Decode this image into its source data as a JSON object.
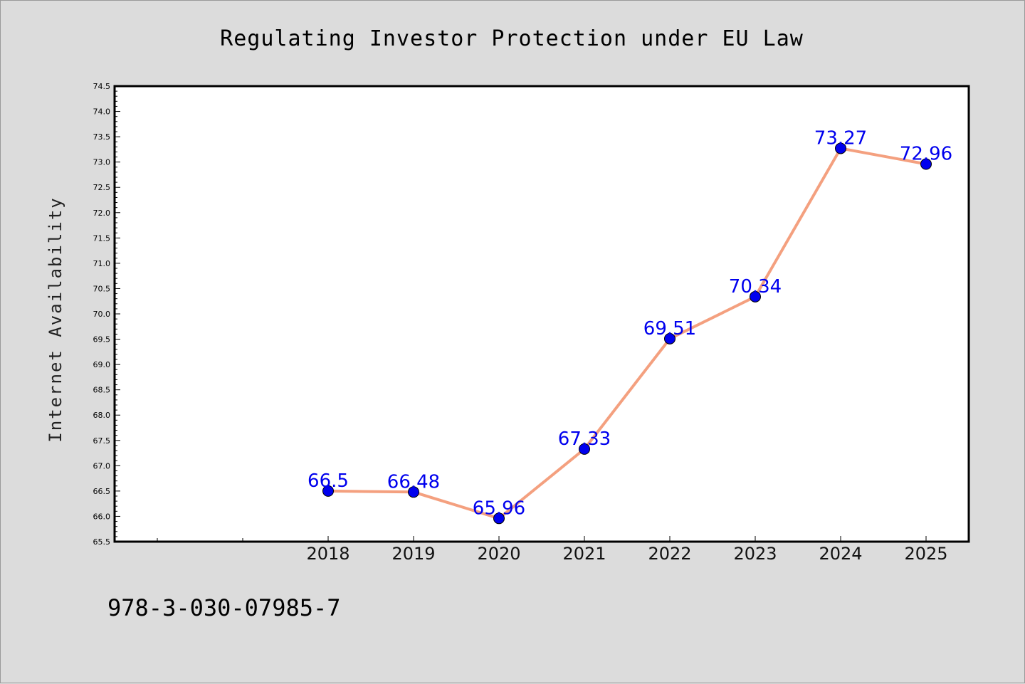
{
  "chart_data": {
    "type": "line",
    "title": "Regulating Investor Protection under EU Law",
    "xlabel": "",
    "ylabel": "Internet Availability",
    "categories": [
      "2018",
      "2019",
      "2020",
      "2021",
      "2022",
      "2023",
      "2024",
      "2025"
    ],
    "series": [
      {
        "values": [
          66.5,
          66.48,
          65.96,
          67.33,
          69.51,
          70.34,
          73.27,
          72.96
        ],
        "labels": [
          "66.5",
          "66.48",
          "65.96",
          "67.33",
          "69.51",
          "70.34",
          "73.27",
          "72.96"
        ],
        "line_color": "#f4a07f",
        "marker_color": "#0000ee"
      }
    ],
    "ylim": [
      65.5,
      74.5
    ],
    "yticks": [
      "65.5",
      "66.0",
      "66.5",
      "67.0",
      "67.5",
      "68.0",
      "68.5",
      "69.0",
      "69.5",
      "70.0",
      "70.5",
      "71.0",
      "71.5",
      "72.0",
      "72.5",
      "73.0",
      "73.5",
      "74.0",
      "74.5"
    ],
    "grid": false,
    "legend": "none"
  },
  "footer": {
    "isbn": "978-3-030-07985-7"
  },
  "colors": {
    "background": "#dcdcdc",
    "plot_background": "#ffffff",
    "line": "#f4a07f",
    "marker": "#0000ee",
    "data_label": "#0000ee"
  }
}
